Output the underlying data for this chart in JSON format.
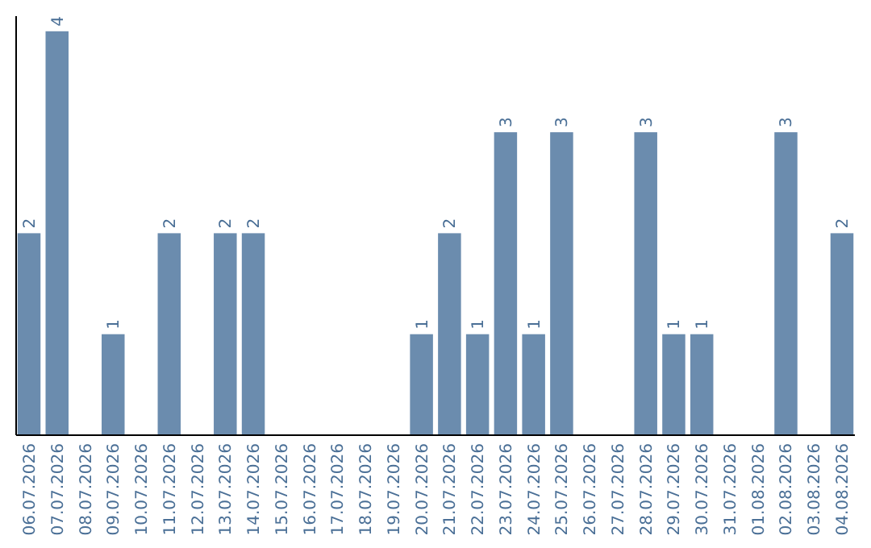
{
  "chart_data": {
    "type": "bar",
    "categories": [
      "06.07.2026",
      "07.07.2026",
      "08.07.2026",
      "09.07.2026",
      "10.07.2026",
      "11.07.2026",
      "12.07.2026",
      "13.07.2026",
      "14.07.2026",
      "15.07.2026",
      "16.07.2026",
      "17.07.2026",
      "18.07.2026",
      "19.07.2026",
      "20.07.2026",
      "21.07.2026",
      "22.07.2026",
      "23.07.2026",
      "24.07.2026",
      "25.07.2026",
      "26.07.2026",
      "27.07.2026",
      "28.07.2026",
      "29.07.2026",
      "30.07.2026",
      "31.07.2026",
      "01.08.2026",
      "02.08.2026",
      "03.08.2026",
      "04.08.2026"
    ],
    "values": [
      2,
      4,
      0,
      1,
      0,
      2,
      0,
      2,
      2,
      0,
      0,
      0,
      0,
      0,
      1,
      2,
      1,
      3,
      1,
      3,
      0,
      0,
      3,
      1,
      1,
      0,
      0,
      3,
      0,
      2
    ],
    "value_labels": [
      "2",
      "4",
      null,
      "1",
      null,
      "2",
      null,
      "2",
      "2",
      null,
      null,
      null,
      null,
      null,
      "1",
      "2",
      "1",
      "3",
      "1",
      "3",
      null,
      null,
      "3",
      "1",
      "1",
      null,
      null,
      "3",
      null,
      "2"
    ],
    "color": "#6b8cae",
    "ylim": [
      0,
      4.15
    ]
  }
}
